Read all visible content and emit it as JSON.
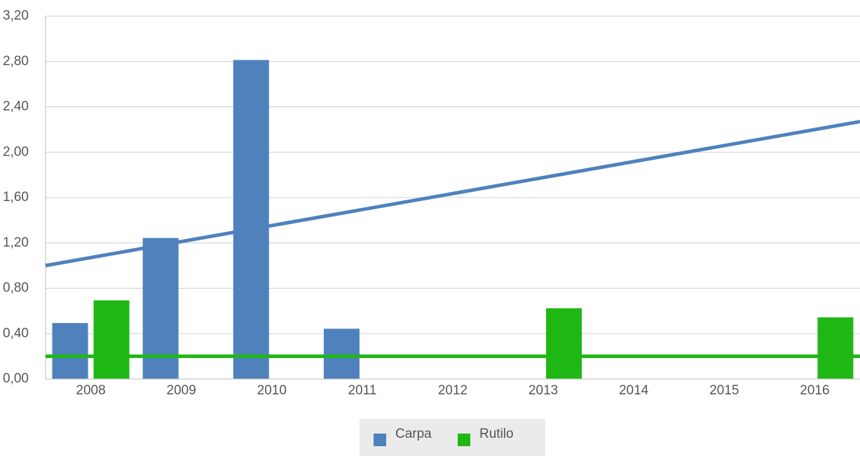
{
  "chart_data": {
    "type": "bar",
    "categories": [
      "2008",
      "2009",
      "2010",
      "2011",
      "2012",
      "2013",
      "2014",
      "2015",
      "2016"
    ],
    "series": [
      {
        "name": "Carpa",
        "color": "#4f81bd",
        "values": [
          0.49,
          1.24,
          2.81,
          0.44,
          0,
          0,
          0,
          0,
          0
        ],
        "trend": [
          1.0,
          2.27
        ]
      },
      {
        "name": "Rutilo",
        "color": "#1fb714",
        "values": [
          0.69,
          0,
          0,
          0,
          0,
          0.62,
          0,
          0,
          0.54
        ],
        "trend": [
          0.2,
          0.2
        ]
      }
    ],
    "ylim": [
      0,
      3.2
    ],
    "yticks": [
      {
        "value": 0,
        "label": "0,00"
      },
      {
        "value": 0.4,
        "label": "0,40"
      },
      {
        "value": 0.8,
        "label": "0,80"
      },
      {
        "value": 1.2,
        "label": "1,20"
      },
      {
        "value": 1.6,
        "label": "1,60"
      },
      {
        "value": 2.0,
        "label": "2,00"
      },
      {
        "value": 2.4,
        "label": "2,40"
      },
      {
        "value": 2.8,
        "label": "2,80"
      },
      {
        "value": 3.2,
        "label": "3,20"
      }
    ],
    "grid": true,
    "legend": "bottom"
  }
}
